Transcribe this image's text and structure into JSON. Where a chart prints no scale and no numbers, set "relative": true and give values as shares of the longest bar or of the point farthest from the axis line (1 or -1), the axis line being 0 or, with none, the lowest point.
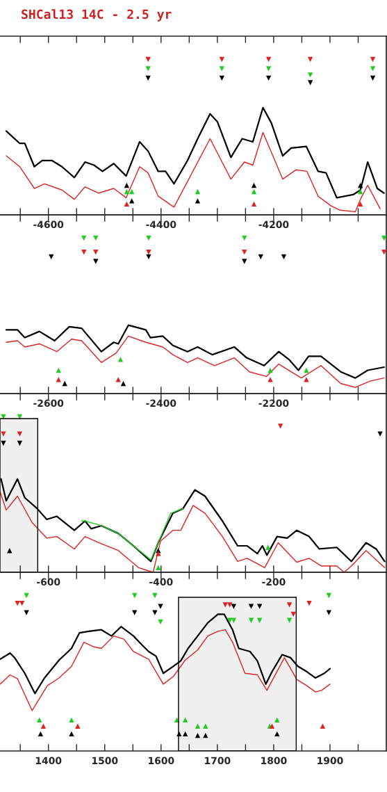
{
  "chart_data": [
    {
      "type": "line",
      "title": "SHCal13 14C - 2.5 yr",
      "relative": true,
      "tick_labels": "x",
      "xlim": [
        -4686,
        -4000
      ],
      "xticks": [
        {
          "value": -4650,
          "label": null
        },
        -4600,
        {
          "value": -4550,
          "label": null
        },
        {
          "value": -4500,
          "label": null
        },
        {
          "value": -4450,
          "label": null
        },
        -4400,
        {
          "value": -4350,
          "label": null
        },
        {
          "value": -4300,
          "label": null
        },
        {
          "value": -4250,
          "label": null
        },
        -4200,
        {
          "value": -4150,
          "label": null
        },
        {
          "value": -4100,
          "label": null
        },
        {
          "value": -4050,
          "label": null
        }
      ],
      "series": [
        {
          "color": "#000000",
          "x": [
            -4675,
            -4651,
            -4642,
            -4625,
            -4611,
            -4594,
            -4576,
            -4554,
            -4535,
            -4519,
            -4504,
            -4484,
            -4462,
            -4438,
            -4423,
            -4405,
            -4392,
            -4377,
            -4353,
            -4335,
            -4313,
            -4300,
            -4276,
            -4256,
            -4237,
            -4219,
            -4204,
            -4184,
            -4169,
            -4142,
            -4121,
            -4107,
            -4088,
            -4059,
            -4046,
            -4033,
            -4016,
            -4004
          ],
          "values": [
            0.54,
            0.46,
            0.46,
            0.31,
            0.35,
            0.35,
            0.31,
            0.24,
            0.34,
            0.32,
            0.28,
            0.33,
            0.25,
            0.47,
            0.41,
            0.28,
            0.28,
            0.2,
            0.35,
            0.49,
            0.65,
            0.6,
            0.37,
            0.49,
            0.47,
            0.69,
            0.59,
            0.38,
            0.43,
            0.44,
            0.28,
            0.27,
            0.11,
            0.13,
            0.16,
            0.34,
            0.17,
            0.14
          ]
        },
        {
          "color": "#dd2222",
          "x": [
            -4675,
            -4651,
            -4625,
            -4607,
            -4576,
            -4554,
            -4535,
            -4511,
            -4484,
            -4462,
            -4438,
            -4423,
            -4405,
            -4377,
            -4313,
            -4276,
            -4252,
            -4237,
            -4219,
            -4184,
            -4160,
            -4141,
            -4121,
            -4099,
            -4082,
            -4055,
            -4046,
            -4033,
            -4011
          ],
          "values": [
            0.38,
            0.31,
            0.17,
            0.2,
            0.16,
            0.1,
            0.18,
            0.14,
            0.17,
            0.11,
            0.31,
            0.27,
            0.12,
            0.05,
            0.49,
            0.23,
            0.34,
            0.32,
            0.53,
            0.23,
            0.29,
            0.28,
            0.12,
            0.06,
            0.03,
            0.02,
            0.1,
            0.19,
            0.04
          ]
        },
        {
          "type": "scatter",
          "marker": "triangle",
          "color": "#dd2222",
          "x": [
            -4423,
            -4292,
            -4209,
            -4135,
            -4024
          ],
          "values": [
            1.0,
            1.0,
            1.0,
            1.0,
            1.0
          ]
        },
        {
          "type": "scatter",
          "marker": "triangle",
          "color": "#22cc22",
          "x": [
            -4423,
            -4292,
            -4209,
            -4135,
            -4024
          ],
          "values": [
            0.94,
            0.94,
            0.94,
            0.9,
            0.94
          ]
        },
        {
          "type": "scatter",
          "marker": "triangle",
          "color": "#000000",
          "x": [
            -4423,
            -4292,
            -4209,
            -4135,
            -4024
          ],
          "values": [
            0.88,
            0.88,
            0.88,
            0.85,
            0.88
          ]
        },
        {
          "type": "scatter",
          "marker": "triangle",
          "color": "#000000",
          "x": [
            -4461,
            -4452,
            -4335,
            -4235,
            -4046
          ],
          "values": [
            0.19,
            0.09,
            0.09,
            0.19,
            0.19
          ]
        },
        {
          "type": "scatter",
          "marker": "triangle",
          "color": "#22cc22",
          "x": [
            -4461,
            -4452,
            -4335,
            -4235,
            -4046
          ],
          "values": [
            0.15,
            0.15,
            0.15,
            0.15,
            0.15
          ]
        },
        {
          "type": "scatter",
          "marker": "triangle",
          "color": "#dd2222",
          "x": [
            -4461,
            -4235,
            -4046
          ],
          "values": [
            0.07,
            0.07,
            0.07
          ]
        }
      ]
    },
    {
      "type": "line",
      "relative": true,
      "tick_labels": "x",
      "xlim": [
        -2686,
        -2000
      ],
      "xticks": [
        {
          "value": -2650,
          "label": null
        },
        -2600,
        {
          "value": -2550,
          "label": null
        },
        {
          "value": -2500,
          "label": null
        },
        {
          "value": -2450,
          "label": null
        },
        -2400,
        {
          "value": -2350,
          "label": null
        },
        {
          "value": -2300,
          "label": null
        },
        {
          "value": -2250,
          "label": null
        },
        -2200,
        {
          "value": -2150,
          "label": null
        },
        {
          "value": -2100,
          "label": null
        },
        {
          "value": -2050,
          "label": null
        }
      ],
      "series": [
        {
          "color": "#000000",
          "x": [
            -2675,
            -2655,
            -2642,
            -2616,
            -2589,
            -2563,
            -2541,
            -2506,
            -2484,
            -2476,
            -2458,
            -2427,
            -2419,
            -2397,
            -2379,
            -2353,
            -2335,
            -2309,
            -2270,
            -2248,
            -2217,
            -2191,
            -2173,
            -2156,
            -2138,
            -2116,
            -2081,
            -2055,
            -2033,
            -2004
          ],
          "values": [
            0.41,
            0.41,
            0.36,
            0.4,
            0.34,
            0.43,
            0.42,
            0.27,
            0.33,
            0.32,
            0.44,
            0.41,
            0.36,
            0.37,
            0.31,
            0.27,
            0.3,
            0.25,
            0.3,
            0.23,
            0.18,
            0.27,
            0.22,
            0.15,
            0.24,
            0.24,
            0.14,
            0.1,
            0.15,
            0.17
          ]
        },
        {
          "color": "#dd2222",
          "x": [
            -2675,
            -2655,
            -2642,
            -2616,
            -2585,
            -2559,
            -2541,
            -2506,
            -2480,
            -2458,
            -2427,
            -2397,
            -2379,
            -2353,
            -2335,
            -2305,
            -2270,
            -2243,
            -2213,
            -2191,
            -2169,
            -2151,
            -2116,
            -2081,
            -2055,
            -2029,
            -2004
          ],
          "values": [
            0.33,
            0.34,
            0.3,
            0.32,
            0.27,
            0.35,
            0.34,
            0.2,
            0.26,
            0.37,
            0.33,
            0.3,
            0.25,
            0.2,
            0.23,
            0.18,
            0.23,
            0.14,
            0.11,
            0.19,
            0.14,
            0.1,
            0.18,
            0.065,
            0.04,
            0.08,
            0.1
          ]
        },
        {
          "type": "scatter",
          "marker": "triangle",
          "color": "#22cc22",
          "x": [
            -2537,
            -2516,
            -2422,
            -2252,
            -2004
          ],
          "values": [
            1.0,
            1.0,
            1.0,
            1.0,
            1.0
          ]
        },
        {
          "type": "scatter",
          "marker": "triangle",
          "color": "#dd2222",
          "x": [
            -2537,
            -2516,
            -2422,
            -2252,
            -2004
          ],
          "values": [
            0.91,
            0.91,
            0.91,
            0.91,
            0.91
          ]
        },
        {
          "type": "scatter",
          "marker": "triangle",
          "color": "#000000",
          "x": [
            -2595,
            -2516,
            -2422,
            -2252,
            -2223,
            -2182
          ],
          "values": [
            0.88,
            0.85,
            0.88,
            0.85,
            0.88,
            0.88
          ]
        },
        {
          "type": "scatter",
          "marker": "triangle",
          "color": "#22cc22",
          "x": [
            -2582,
            -2472,
            -2206,
            -2142
          ],
          "values": [
            0.15,
            0.22,
            0.15,
            0.15
          ]
        },
        {
          "type": "scatter",
          "marker": "triangle",
          "color": "#dd2222",
          "x": [
            -2582,
            -2476,
            -2206,
            -2142
          ],
          "values": [
            0.09,
            0.09,
            0.09,
            0.09
          ]
        },
        {
          "type": "scatter",
          "marker": "triangle",
          "color": "#000000",
          "x": [
            -2571,
            -2467
          ],
          "values": [
            0.065,
            0.065
          ]
        }
      ]
    },
    {
      "type": "line",
      "relative": true,
      "tick_labels": "x",
      "xlim": [
        -686,
        0
      ],
      "xticks": [
        {
          "value": -650,
          "label": null
        },
        -600,
        {
          "value": -550,
          "label": null
        },
        {
          "value": -500,
          "label": null
        },
        {
          "value": -450,
          "label": null
        },
        -400,
        {
          "value": -350,
          "label": null
        },
        {
          "value": -300,
          "label": null
        },
        {
          "value": -250,
          "label": null
        },
        -200,
        {
          "value": -150,
          "label": null
        },
        {
          "value": -100,
          "label": null
        },
        {
          "value": -50,
          "label": null
        }
      ],
      "bands": [
        {
          "axis": "x",
          "from": -686,
          "to": -619,
          "color": "#000000"
        }
      ],
      "series": [
        {
          "color": "#000000",
          "x": [
            -684,
            -675,
            -655,
            -642,
            -620,
            -603,
            -585,
            -554,
            -535,
            -524,
            -506,
            -476,
            -449,
            -418,
            -405,
            -379,
            -361,
            -340,
            -322,
            -291,
            -264,
            -247,
            -229,
            -220,
            -212,
            -194,
            -176,
            -159,
            -137,
            -119,
            -88,
            -62,
            -36,
            -18,
            -3
          ],
          "values": [
            0.6,
            0.46,
            0.6,
            0.48,
            0.41,
            0.34,
            0.36,
            0.27,
            0.33,
            0.28,
            0.3,
            0.25,
            0.17,
            0.07,
            0.19,
            0.38,
            0.41,
            0.53,
            0.49,
            0.33,
            0.17,
            0.17,
            0.12,
            0.17,
            0.11,
            0.23,
            0.22,
            0.27,
            0.23,
            0.15,
            0.16,
            0.07,
            0.19,
            0.15,
            0.07
          ]
        },
        {
          "color": "#22cc22",
          "x": [
            -541,
            -535,
            -506,
            -476,
            -449,
            -418,
            -405,
            -383,
            -361
          ],
          "values": [
            0.33,
            0.33,
            0.3,
            0.25,
            0.17,
            0.08,
            0.19,
            0.38,
            0.41
          ]
        },
        {
          "color": "#dd2222",
          "x": [
            -686,
            -675,
            -655,
            -629,
            -603,
            -585,
            -554,
            -535,
            -510,
            -476,
            -440,
            -423,
            -414,
            -401,
            -379,
            -365,
            -343,
            -322,
            -291,
            -264,
            -247,
            -216,
            -192,
            -159,
            -137,
            -115,
            -88,
            -75,
            -62,
            -36,
            -3
          ],
          "values": [
            0.52,
            0.4,
            0.49,
            0.32,
            0.22,
            0.23,
            0.15,
            0.23,
            0.19,
            0.14,
            0.03,
            0.01,
            0.0,
            0.2,
            0.27,
            0.27,
            0.43,
            0.38,
            0.23,
            0.07,
            0.09,
            0.03,
            0.19,
            0.065,
            0.09,
            0.04,
            0.04,
            0.0,
            0.04,
            0.14,
            0.03
          ]
        },
        {
          "type": "scatter",
          "marker": "triangle",
          "color": "#22cc22",
          "x": [
            -680,
            -651
          ],
          "values": [
            1.0,
            1.0
          ]
        },
        {
          "type": "scatter",
          "marker": "triangle",
          "color": "#dd2222",
          "x": [
            -680,
            -651,
            -188
          ],
          "values": [
            0.89,
            0.89,
            0.94
          ]
        },
        {
          "type": "scatter",
          "marker": "triangle",
          "color": "#000000",
          "x": [
            -680,
            -651,
            -11
          ],
          "values": [
            0.83,
            0.83,
            0.89
          ]
        },
        {
          "type": "scatter",
          "marker": "triangle",
          "color": "#000000",
          "x": [
            -669,
            -405
          ],
          "values": [
            0.14,
            0.14
          ]
        },
        {
          "type": "scatter",
          "marker": "triangle",
          "color": "#dd2222",
          "x": [
            -405
          ],
          "values": [
            0.12
          ]
        },
        {
          "type": "scatter",
          "marker": "triangle",
          "color": "#22cc22",
          "x": [
            -405,
            -210
          ],
          "values": [
            0.03,
            0.16
          ]
        }
      ]
    },
    {
      "type": "line",
      "relative": true,
      "tick_labels": "x",
      "xlim": [
        1314,
        2000
      ],
      "xticks": [
        {
          "value": 1350,
          "label": null
        },
        1400,
        {
          "value": 1450,
          "label": null
        },
        1500,
        {
          "value": 1550,
          "label": null
        },
        1600,
        {
          "value": 1650,
          "label": null
        },
        1700,
        {
          "value": 1750,
          "label": null
        },
        1800,
        {
          "value": 1850,
          "label": null
        },
        1900,
        {
          "value": 1950,
          "label": null
        }
      ],
      "bands": [
        {
          "axis": "x",
          "from": 1631,
          "to": 1840,
          "color": "#000000"
        }
      ],
      "series": [
        {
          "color": "#000000",
          "x": [
            1314,
            1332,
            1340,
            1358,
            1376,
            1393,
            1419,
            1441,
            1455,
            1472,
            1494,
            1512,
            1529,
            1551,
            1564,
            1578,
            1591,
            1604,
            1622,
            1635,
            1648,
            1665,
            1683,
            1701,
            1712,
            1727,
            1738,
            1758,
            1771,
            1786,
            1797,
            1815,
            1830,
            1843,
            1859,
            1874,
            1890,
            1900
          ],
          "values": [
            0.59,
            0.63,
            0.6,
            0.5,
            0.37,
            0.47,
            0.585,
            0.66,
            0.76,
            0.77,
            0.78,
            0.74,
            0.8,
            0.74,
            0.69,
            0.64,
            0.61,
            0.5,
            0.545,
            0.58,
            0.66,
            0.74,
            0.825,
            0.88,
            0.88,
            0.78,
            0.66,
            0.64,
            0.58,
            0.43,
            0.51,
            0.62,
            0.6,
            0.545,
            0.51,
            0.47,
            0.5,
            0.53
          ]
        },
        {
          "color": "#dd2222",
          "x": [
            1314,
            1332,
            1345,
            1371,
            1398,
            1419,
            1441,
            1463,
            1481,
            1494,
            1516,
            1534,
            1551,
            1578,
            1604,
            1622,
            1643,
            1665,
            1683,
            1701,
            1714,
            1727,
            1749,
            1771,
            1788,
            1819,
            1841,
            1859,
            1874,
            1885,
            1900
          ],
          "values": [
            0.43,
            0.49,
            0.465,
            0.26,
            0.42,
            0.47,
            0.545,
            0.7,
            0.67,
            0.66,
            0.74,
            0.72,
            0.64,
            0.59,
            0.43,
            0.48,
            0.585,
            0.65,
            0.74,
            0.77,
            0.78,
            0.7,
            0.5,
            0.49,
            0.39,
            0.6,
            0.46,
            0.42,
            0.38,
            0.39,
            0.43
          ]
        },
        {
          "type": "scatter",
          "marker": "triangle",
          "color": "#dd2222",
          "x": [
            1345,
            1353,
            1714,
            1722,
            1828,
            1835,
            1863
          ],
          "values": [
            0.95,
            0.95,
            0.94,
            0.94,
            0.94,
            0.88,
            0.95
          ]
        },
        {
          "type": "scatter",
          "marker": "triangle",
          "color": "#22cc22",
          "x": [
            1361,
            1553,
            1589,
            1599,
            1722,
            1729,
            1760,
            1775,
            1828,
            1898
          ],
          "values": [
            1.0,
            1.0,
            1.0,
            0.83,
            0.84,
            0.84,
            0.84,
            0.84,
            0.84,
            1.0
          ]
        },
        {
          "type": "scatter",
          "marker": "triangle",
          "color": "#000000",
          "x": [
            1361,
            1553,
            1589,
            1599,
            1729,
            1760,
            1775,
            1898
          ],
          "values": [
            0.89,
            0.89,
            0.89,
            0.93,
            0.93,
            0.93,
            0.93,
            0.89
          ]
        },
        {
          "type": "scatter",
          "marker": "triangle",
          "color": "#22cc22",
          "x": [
            1384,
            1441,
            1628,
            1643,
            1665,
            1679,
            1793,
            1806
          ],
          "values": [
            0.2,
            0.2,
            0.2,
            0.2,
            0.16,
            0.16,
            0.16,
            0.2
          ]
        },
        {
          "type": "scatter",
          "marker": "triangle",
          "color": "#dd2222",
          "x": [
            1391,
            1452,
            1797,
            1887
          ],
          "values": [
            0.16,
            0.16,
            0.16,
            0.16
          ]
        },
        {
          "type": "scatter",
          "marker": "triangle",
          "color": "#000000",
          "x": [
            1386,
            1441,
            1632,
            1643,
            1665,
            1679,
            1806
          ],
          "values": [
            0.11,
            0.11,
            0.11,
            0.11,
            0.1,
            0.1,
            0.11
          ]
        }
      ]
    }
  ]
}
